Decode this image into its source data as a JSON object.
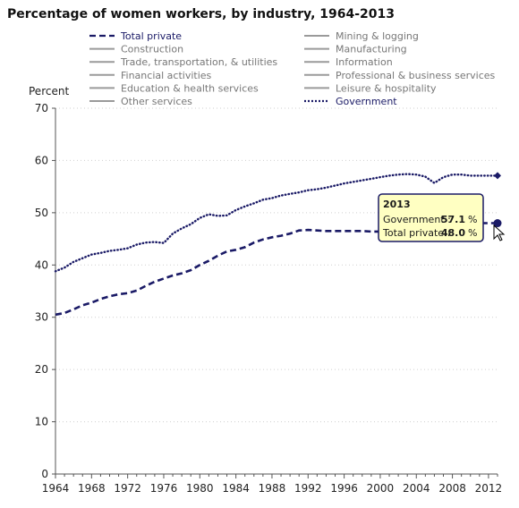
{
  "chart_data": {
    "type": "line",
    "title": "Percentage of women workers, by industry, 1964-2013",
    "ylabel": "Percent",
    "xlabel": "",
    "ylim": [
      0,
      70
    ],
    "xlim": [
      1964,
      2013
    ],
    "y_ticks": [
      0,
      10,
      20,
      30,
      40,
      50,
      60,
      70
    ],
    "x_ticks": [
      1964,
      1968,
      1972,
      1976,
      1980,
      1984,
      1988,
      1992,
      1996,
      2000,
      2004,
      2008,
      2012
    ],
    "grid": "horizontal dotted",
    "legend_placement": "top",
    "legend": [
      {
        "label": "Total private",
        "style": "dashed",
        "color": "#1a1a66",
        "active": true
      },
      {
        "label": "Mining & logging",
        "style": "solid",
        "color": "#9a9a9a",
        "active": false
      },
      {
        "label": "Construction",
        "style": "solid",
        "color": "#9a9a9a",
        "active": false
      },
      {
        "label": "Manufacturing",
        "style": "solid",
        "color": "#9a9a9a",
        "active": false
      },
      {
        "label": "Trade, transportation, & utilities",
        "style": "solid",
        "color": "#9a9a9a",
        "active": false
      },
      {
        "label": "Information",
        "style": "solid",
        "color": "#9a9a9a",
        "active": false
      },
      {
        "label": "Financial activities",
        "style": "solid",
        "color": "#9a9a9a",
        "active": false
      },
      {
        "label": "Professional & business services",
        "style": "solid",
        "color": "#9a9a9a",
        "active": false
      },
      {
        "label": "Education & health services",
        "style": "solid",
        "color": "#9a9a9a",
        "active": false
      },
      {
        "label": "Leisure & hospitality",
        "style": "solid",
        "color": "#9a9a9a",
        "active": false
      },
      {
        "label": "Other services",
        "style": "solid",
        "color": "#9a9a9a",
        "active": false
      },
      {
        "label": "Government",
        "style": "dotted",
        "color": "#1a1a66",
        "active": true
      }
    ],
    "series": [
      {
        "name": "Total private",
        "style": "dashed",
        "color": "#1a1a66",
        "x": [
          1964,
          1965,
          1966,
          1967,
          1968,
          1969,
          1970,
          1971,
          1972,
          1973,
          1974,
          1975,
          1976,
          1977,
          1978,
          1979,
          1980,
          1981,
          1982,
          1983,
          1984,
          1985,
          1986,
          1987,
          1988,
          1989,
          1990,
          1991,
          1992,
          1993,
          1994,
          1995,
          1996,
          1997,
          1998,
          1999,
          2000,
          2001,
          2002,
          2003,
          2004,
          2005,
          2006,
          2007,
          2008,
          2009,
          2010,
          2011,
          2012,
          2013
        ],
        "values": [
          30.5,
          30.8,
          31.5,
          32.3,
          32.8,
          33.5,
          34.0,
          34.4,
          34.6,
          35.1,
          36.0,
          36.8,
          37.4,
          38.0,
          38.4,
          39.0,
          40.0,
          40.8,
          41.8,
          42.6,
          42.9,
          43.4,
          44.3,
          44.9,
          45.3,
          45.6,
          46.0,
          46.6,
          46.7,
          46.6,
          46.5,
          46.5,
          46.5,
          46.5,
          46.5,
          46.4,
          46.4,
          46.5,
          46.6,
          46.6,
          46.7,
          46.8,
          46.9,
          47.3,
          47.9,
          48.4,
          48.2,
          48.0,
          48.0,
          48.0
        ]
      },
      {
        "name": "Government",
        "style": "dotted",
        "color": "#1a1a66",
        "x": [
          1964,
          1965,
          1966,
          1967,
          1968,
          1969,
          1970,
          1971,
          1972,
          1973,
          1974,
          1975,
          1976,
          1977,
          1978,
          1979,
          1980,
          1981,
          1982,
          1983,
          1984,
          1985,
          1986,
          1987,
          1988,
          1989,
          1990,
          1991,
          1992,
          1993,
          1994,
          1995,
          1996,
          1997,
          1998,
          1999,
          2000,
          2001,
          2002,
          2003,
          2004,
          2005,
          2006,
          2007,
          2008,
          2009,
          2010,
          2011,
          2012,
          2013
        ],
        "values": [
          38.8,
          39.5,
          40.6,
          41.3,
          42.0,
          42.3,
          42.7,
          42.9,
          43.2,
          43.9,
          44.3,
          44.4,
          44.2,
          46.0,
          47.0,
          47.8,
          49.0,
          49.7,
          49.4,
          49.5,
          50.5,
          51.2,
          51.8,
          52.5,
          52.8,
          53.3,
          53.6,
          53.9,
          54.3,
          54.5,
          54.8,
          55.2,
          55.6,
          55.9,
          56.2,
          56.5,
          56.8,
          57.1,
          57.3,
          57.4,
          57.3,
          56.9,
          55.7,
          56.8,
          57.3,
          57.3,
          57.1,
          57.1,
          57.1,
          57.1
        ]
      }
    ],
    "tooltip": {
      "year": "2013",
      "rows": [
        {
          "label": "Government :",
          "value": "57.1",
          "unit": "%"
        },
        {
          "label": "Total private :",
          "value": "48.0",
          "unit": "%"
        }
      ]
    }
  }
}
